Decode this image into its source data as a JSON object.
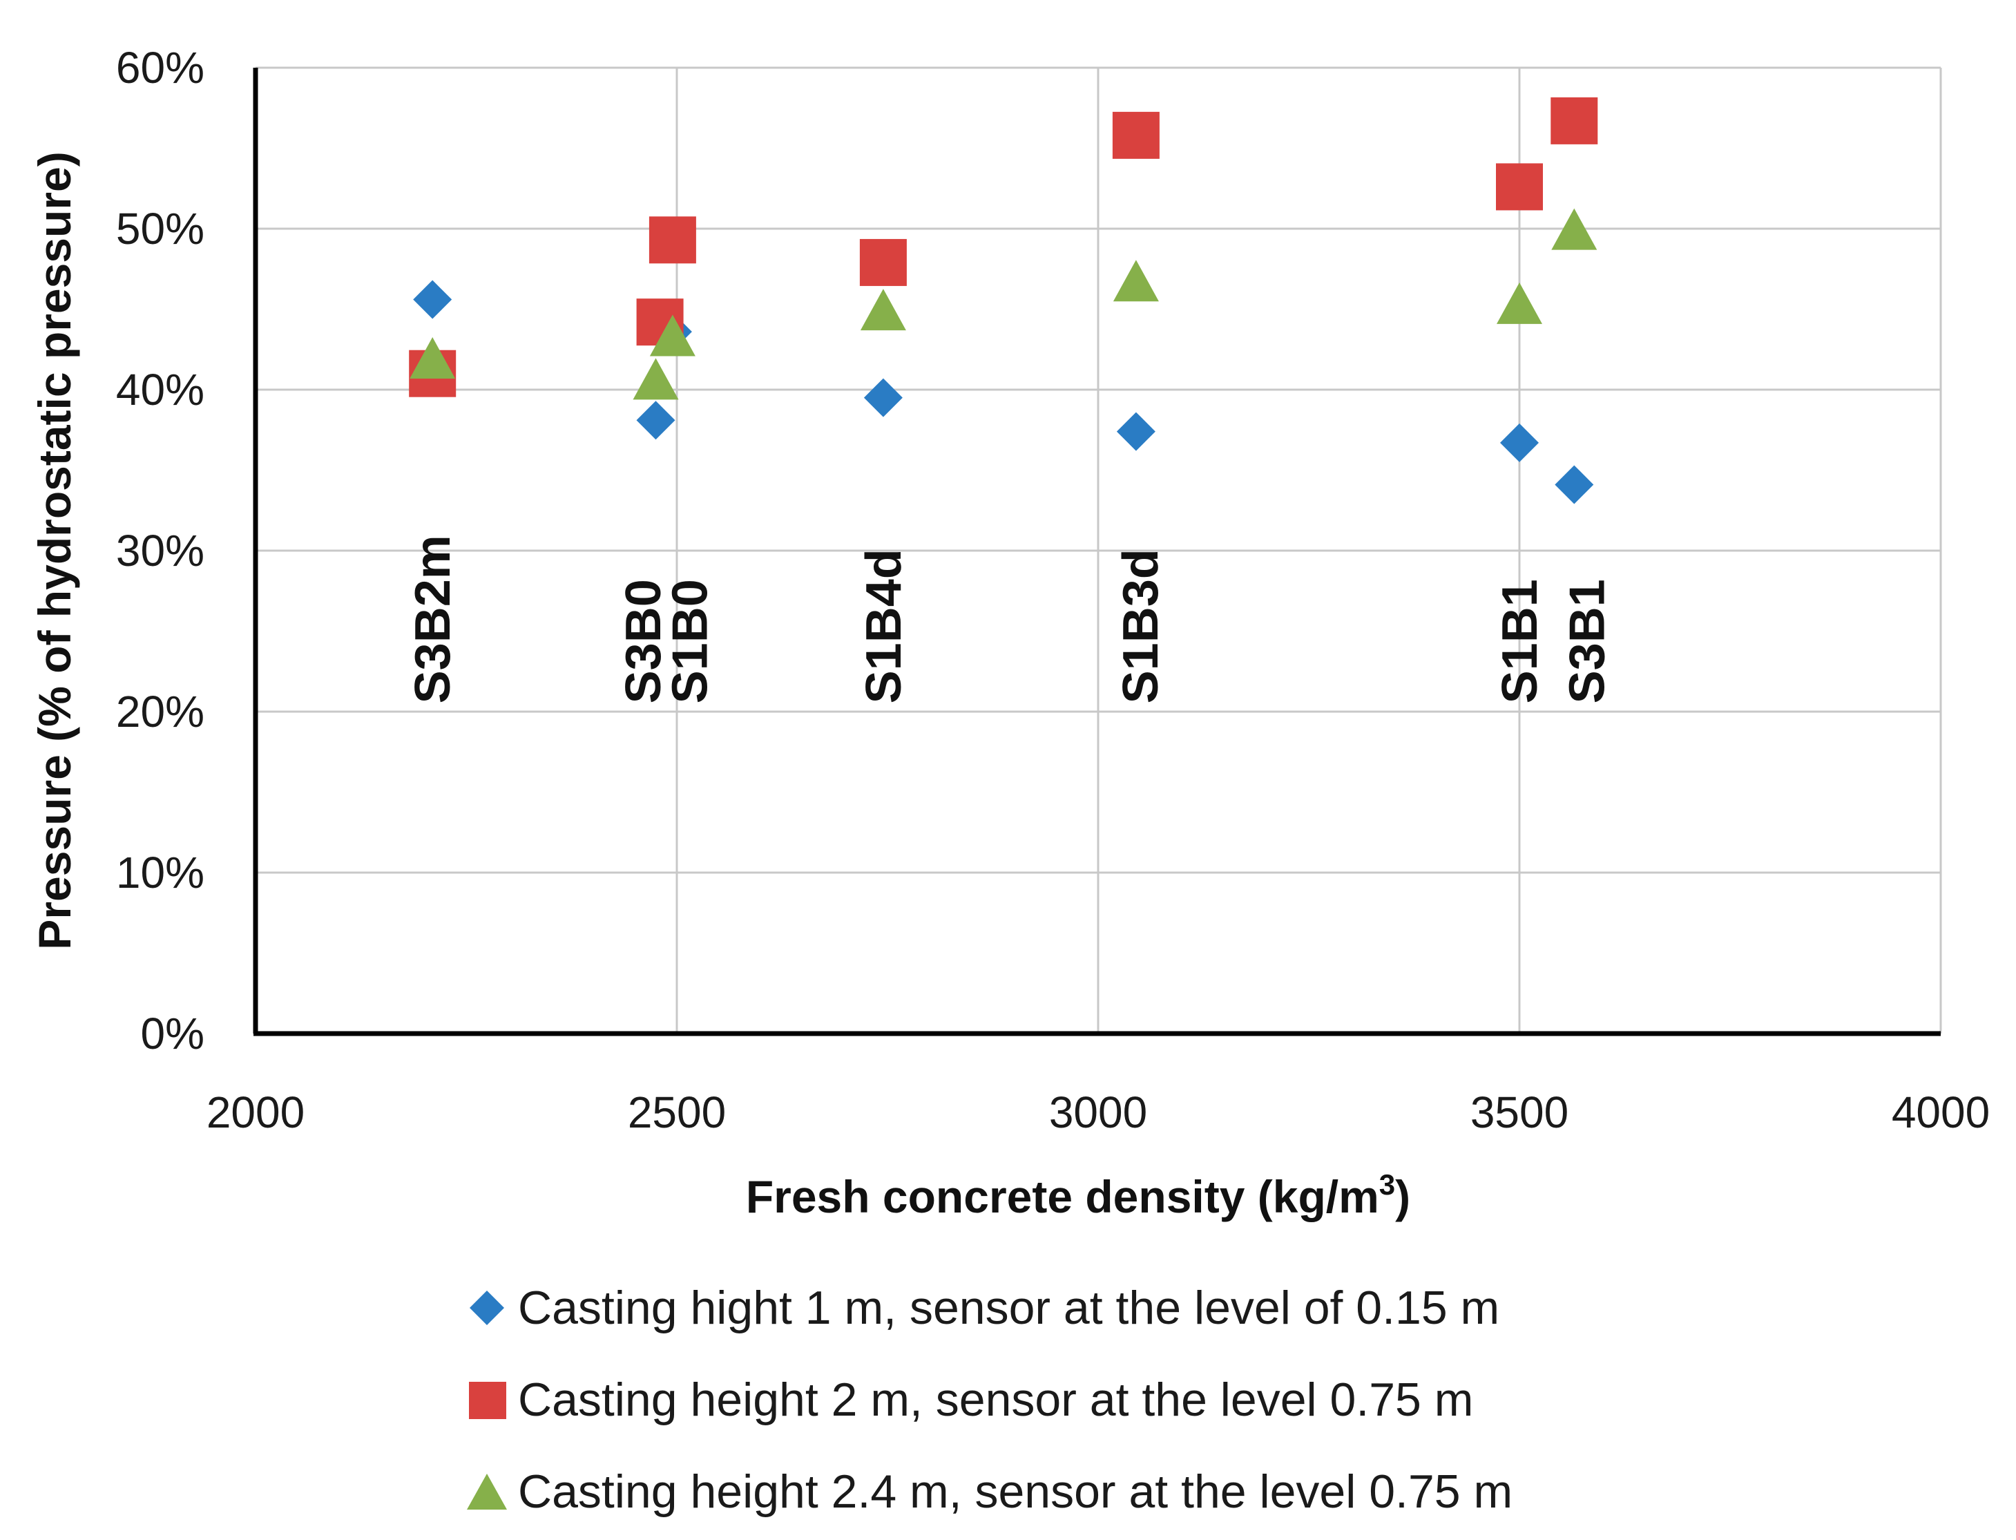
{
  "chart_data": {
    "type": "scatter",
    "title": "",
    "xlabel": "Fresh concrete density (kg/m",
    "xlabel_sup": "3",
    "xlabel_close": ")",
    "ylabel": "Pressure (% of hydrostatic  pressure)",
    "xlim": [
      2000,
      4000
    ],
    "ylim": [
      0,
      60
    ],
    "x_ticks": [
      2000,
      2500,
      3000,
      3500,
      4000
    ],
    "x_tick_labels": [
      "2000",
      "2500",
      "3000",
      "3500",
      "4000"
    ],
    "y_ticks": [
      0,
      10,
      20,
      30,
      40,
      50,
      60
    ],
    "y_tick_labels": [
      "0%",
      "10%",
      "20%",
      "30%",
      "40%",
      "50%",
      "60%"
    ],
    "grid": true,
    "legend_position": "bottom",
    "series": [
      {
        "name": "Casting hight 1 m, sensor at the level of 0.15 m",
        "marker": "diamond",
        "color": "#2a7cc4",
        "points": [
          {
            "x": 2210,
            "y": 45.6
          },
          {
            "x": 2475,
            "y": 38.1
          },
          {
            "x": 2495,
            "y": 43.6
          },
          {
            "x": 2745,
            "y": 39.5
          },
          {
            "x": 3045,
            "y": 37.4
          },
          {
            "x": 3500,
            "y": 36.7
          },
          {
            "x": 3565,
            "y": 34.1
          }
        ]
      },
      {
        "name": "Casting height 2 m, sensor at the level 0.75 m",
        "marker": "square",
        "color": "#d9413e",
        "points": [
          {
            "x": 2210,
            "y": 41.0
          },
          {
            "x": 2480,
            "y": 44.2
          },
          {
            "x": 2495,
            "y": 49.3
          },
          {
            "x": 2745,
            "y": 47.9
          },
          {
            "x": 3045,
            "y": 55.8
          },
          {
            "x": 3500,
            "y": 52.6
          },
          {
            "x": 3565,
            "y": 56.7
          }
        ]
      },
      {
        "name": "Casting height 2.4 m, sensor at the level 0.75 m",
        "marker": "triangle",
        "color": "#86b04a",
        "points": [
          {
            "x": 2210,
            "y": 41.8
          },
          {
            "x": 2475,
            "y": 40.5
          },
          {
            "x": 2495,
            "y": 43.2
          },
          {
            "x": 2745,
            "y": 44.8
          },
          {
            "x": 3045,
            "y": 46.6
          },
          {
            "x": 3500,
            "y": 45.2
          },
          {
            "x": 3565,
            "y": 49.8
          }
        ]
      }
    ],
    "annotations": [
      {
        "text": "S3B2m",
        "x": 2210
      },
      {
        "text": "S3B0",
        "x": 2460
      },
      {
        "text": "S1B0",
        "x": 2515
      },
      {
        "text": "S1B4d",
        "x": 2745
      },
      {
        "text": "S1B3d",
        "x": 3050
      },
      {
        "text": "S1B1",
        "x": 3500
      },
      {
        "text": "S3B1",
        "x": 3580
      }
    ]
  }
}
